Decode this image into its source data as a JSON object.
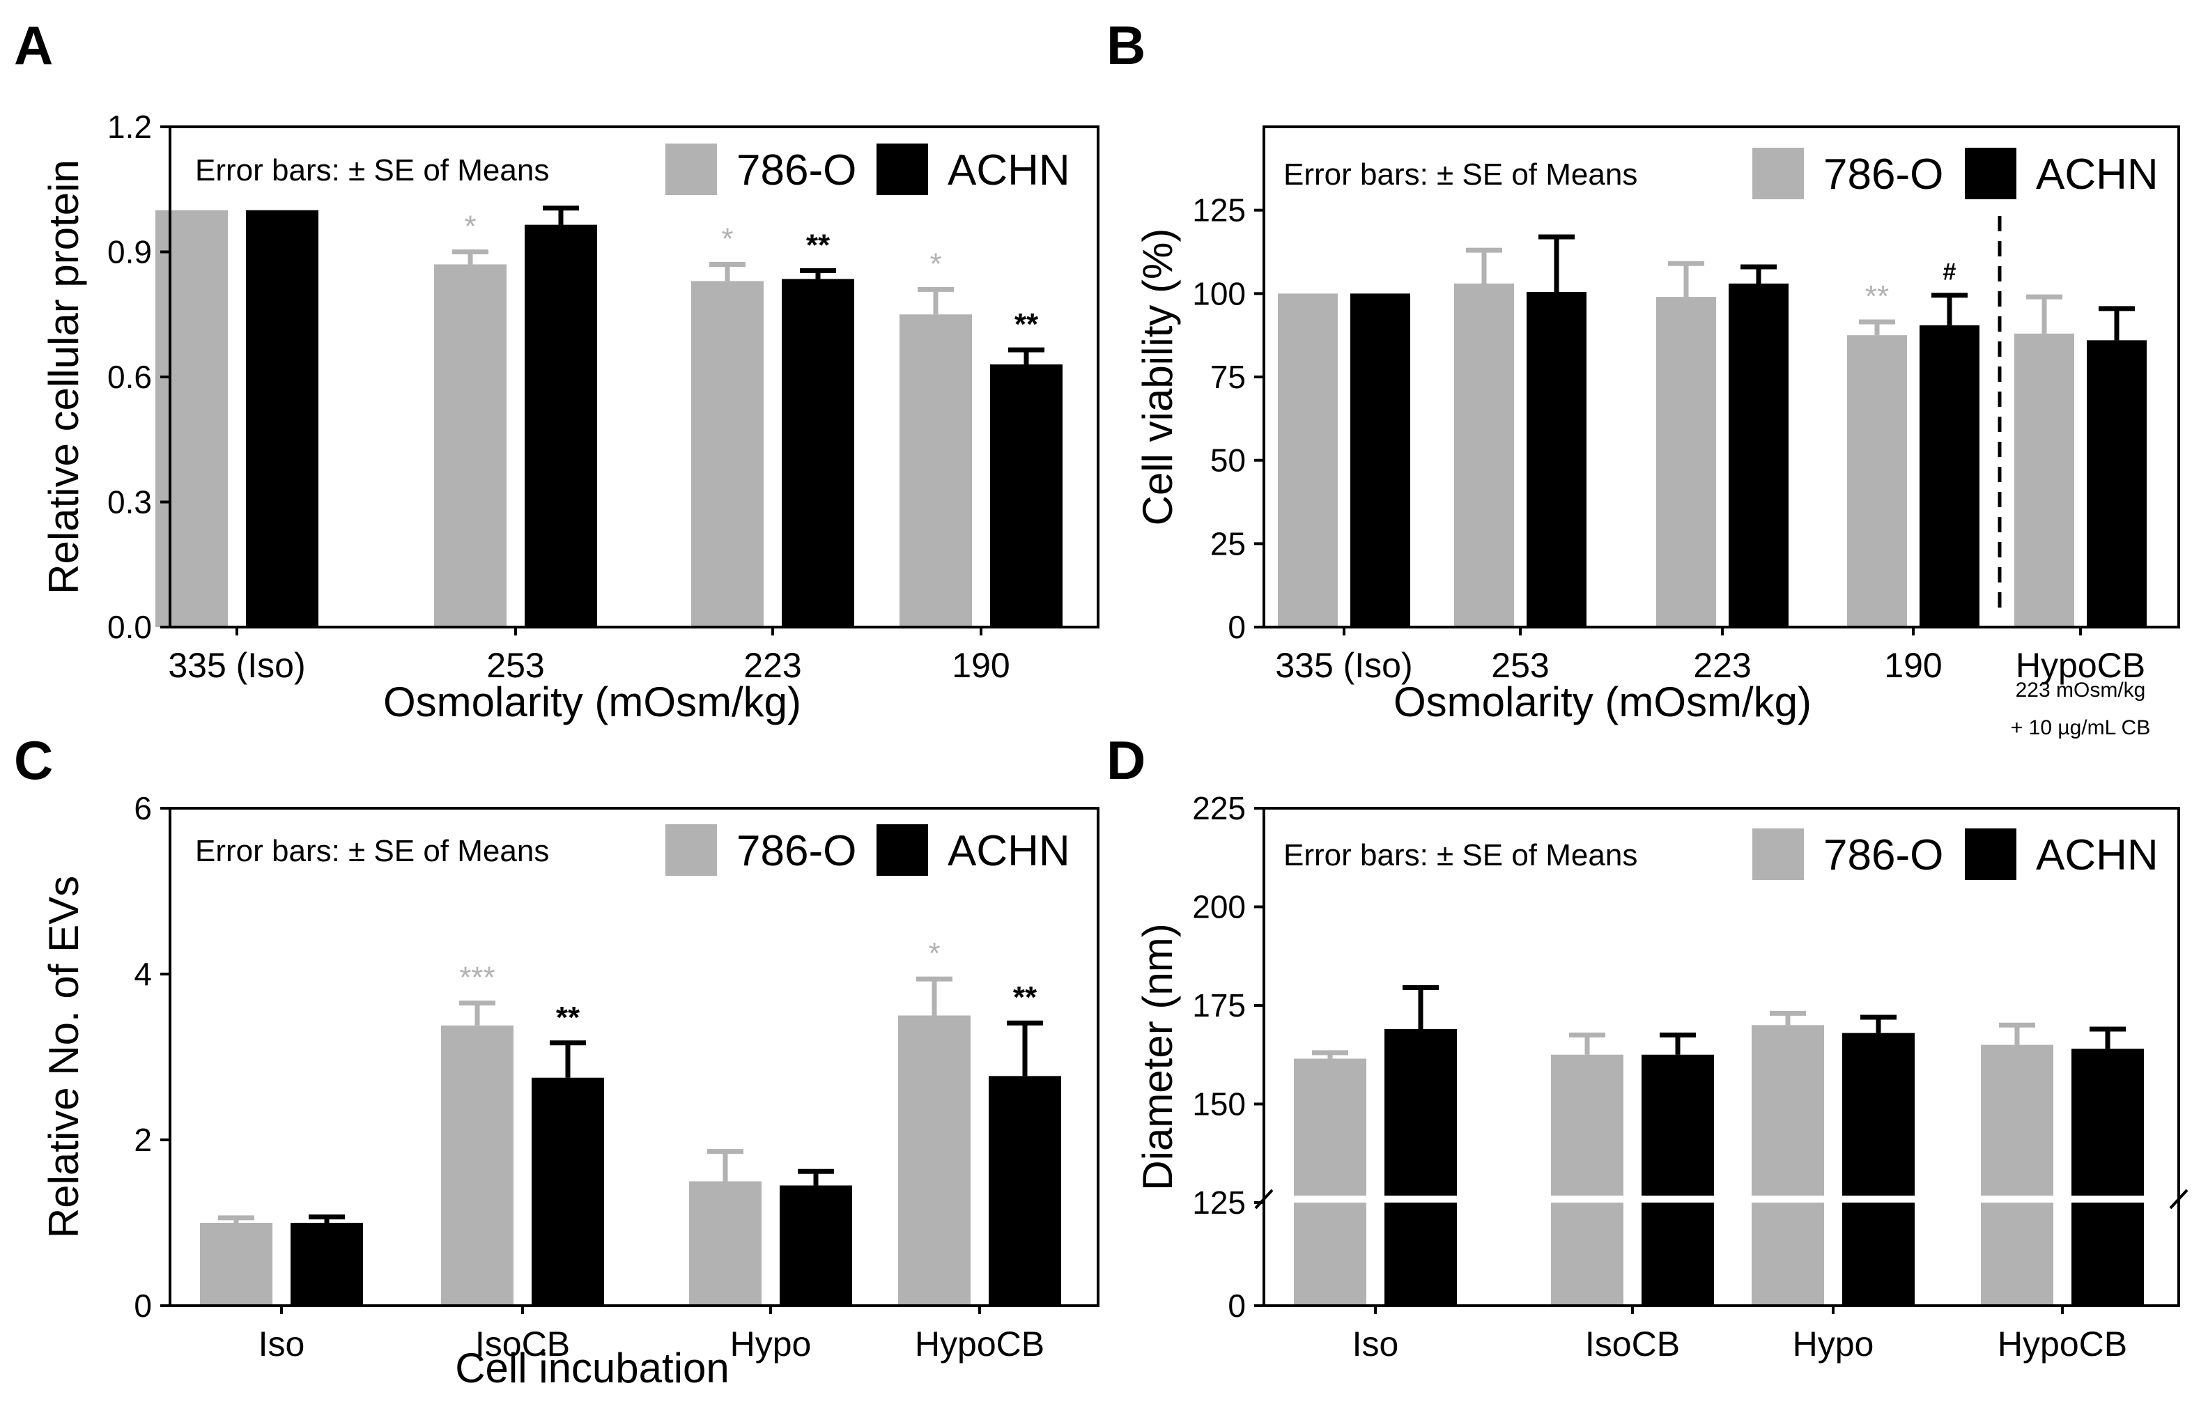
{
  "colors": {
    "c786": "#b2b2b2",
    "achn": "#000000",
    "axis": "#000000",
    "background": "#ffffff"
  },
  "chart_data": [
    {
      "panel": "A",
      "type": "bar",
      "error_note": "Error bars: ± SE of Means",
      "xlabel": "Osmolarity (mOsm/kg)",
      "ylabel": "Relative cellular protein",
      "categories": [
        "335 (Iso)",
        "253",
        "223",
        "190"
      ],
      "ylim": [
        0,
        1.2
      ],
      "yticks": [
        "0.0",
        "0.3",
        "0.6",
        "0.9",
        "1.2"
      ],
      "series": [
        {
          "name": "786-O",
          "color": "#b2b2b2",
          "values": [
            1.0,
            0.87,
            0.83,
            0.75
          ],
          "errors": [
            0,
            0.03,
            0.04,
            0.06
          ],
          "sig": [
            "",
            "*",
            "*",
            "*"
          ]
        },
        {
          "name": "ACHN",
          "color": "#000000",
          "values": [
            1.0,
            0.965,
            0.835,
            0.63
          ],
          "errors": [
            0,
            0.04,
            0.02,
            0.035
          ],
          "sig": [
            "",
            "",
            "**",
            "**"
          ]
        }
      ],
      "legend": "top-right"
    },
    {
      "panel": "B",
      "type": "bar",
      "error_note": "Error bars: ± SE of Means",
      "xlabel": "Osmolarity (mOsm/kg)",
      "ylabel": "Cell viability (%)",
      "categories": [
        "335 (Iso)",
        "253",
        "223",
        "190",
        "HypoCB"
      ],
      "category_note": [
        "223 mOsm/kg",
        "+ 10 µg/mL CB"
      ],
      "ylim": [
        0,
        150
      ],
      "yticks": [
        "0",
        "25",
        "50",
        "75",
        "100",
        "125"
      ],
      "series": [
        {
          "name": "786-O",
          "color": "#b2b2b2",
          "values": [
            100,
            103,
            99,
            87.5,
            88
          ],
          "errors": [
            0,
            10,
            10,
            4,
            11
          ],
          "sig": [
            "",
            "",
            "",
            "**",
            ""
          ]
        },
        {
          "name": "ACHN",
          "color": "#000000",
          "values": [
            100,
            100.5,
            103,
            90.5,
            86
          ],
          "errors": [
            0,
            16.5,
            5,
            9,
            9.5
          ],
          "sig": [
            "",
            "",
            "",
            "#",
            ""
          ]
        }
      ],
      "legend": "top-right"
    },
    {
      "panel": "C",
      "type": "bar",
      "error_note": "Error bars: ± SE of Means",
      "xlabel": "Cell incubation",
      "ylabel": "Relative No. of EVs",
      "categories": [
        "Iso",
        "IsoCB",
        "Hypo",
        "HypoCB"
      ],
      "ylim": [
        0,
        6
      ],
      "yticks": [
        "0",
        "2",
        "4",
        "6"
      ],
      "series": [
        {
          "name": "786-O",
          "color": "#b2b2b2",
          "values": [
            1.0,
            3.38,
            1.5,
            3.5
          ],
          "errors": [
            0.06,
            0.27,
            0.36,
            0.44
          ],
          "sig": [
            "",
            "***",
            "",
            "*"
          ]
        },
        {
          "name": "ACHN",
          "color": "#000000",
          "values": [
            1.0,
            2.75,
            1.45,
            2.77
          ],
          "errors": [
            0.07,
            0.42,
            0.17,
            0.64
          ],
          "sig": [
            "",
            "**",
            "",
            "**"
          ]
        }
      ],
      "legend": "top-right"
    },
    {
      "panel": "D",
      "type": "bar",
      "error_note": "Error bars: ± SE of Means",
      "xlabel": "",
      "ylabel": "Diameter (nm)",
      "categories": [
        "Iso",
        "IsoCB",
        "Hypo",
        "HypoCB"
      ],
      "axis_break": 125,
      "yticks": [
        "0",
        "125",
        "150",
        "175",
        "200",
        "225"
      ],
      "series": [
        {
          "name": "786-O",
          "color": "#b2b2b2",
          "values": [
            161.5,
            162.5,
            170,
            165
          ],
          "errors": [
            1.5,
            5,
            3,
            5
          ],
          "sig": [
            "",
            "",
            "",
            ""
          ]
        },
        {
          "name": "ACHN",
          "color": "#000000",
          "values": [
            169,
            162.5,
            168,
            164
          ],
          "errors": [
            10.5,
            5,
            4,
            5
          ],
          "sig": [
            "",
            "",
            "",
            ""
          ]
        }
      ],
      "legend": "top-right"
    }
  ]
}
